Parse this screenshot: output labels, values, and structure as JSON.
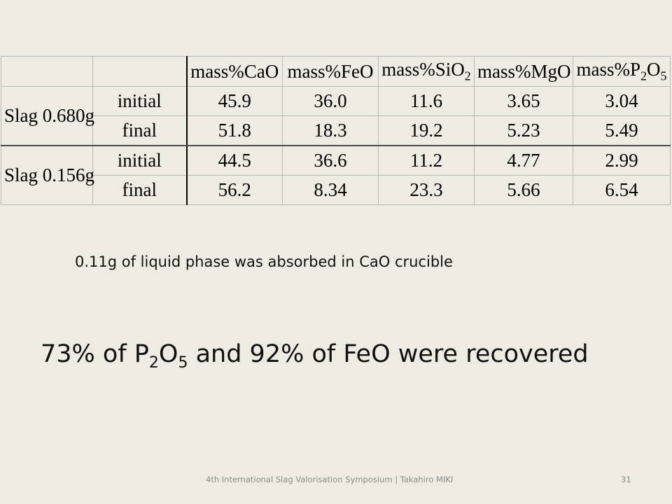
{
  "table": {
    "headers": [
      "",
      "",
      "mass%CaO",
      "mass%FeO",
      "mass%SiO",
      "mass%MgO",
      "mass%P",
      "O"
    ],
    "header_parts": {
      "sio_base": "mass%SiO",
      "sio_sub": "2",
      "p_base": "mass%P",
      "p_sub": "2",
      "p_o": "O",
      "p_o_sub": "5"
    },
    "groups": [
      {
        "label": "Slag 0.680g",
        "rows": [
          {
            "state": "initial",
            "values": [
              "45.9",
              "36.0",
              "11.6",
              "3.65",
              "3.04"
            ]
          },
          {
            "state": "final",
            "values": [
              "51.8",
              "18.3",
              "19.2",
              "5.23",
              "5.49"
            ]
          }
        ]
      },
      {
        "label": "Slag 0.156g",
        "rows": [
          {
            "state": "initial",
            "values": [
              "44.5",
              "36.6",
              "11.2",
              "4.77",
              "2.99"
            ]
          },
          {
            "state": "final",
            "values": [
              "56.2",
              "8.34",
              "23.3",
              "5.66",
              "6.54"
            ]
          }
        ]
      }
    ]
  },
  "note": "0.11g of liquid phase was absorbed in CaO crucible",
  "headline": {
    "part1": "73% of P",
    "sub1": "2",
    "part2": "O",
    "sub2": "5",
    "part3": " and 92% of FeO were recovered"
  },
  "footer": {
    "text": "4th International Slag Valorisation Symposium  |  Takahiro MIKI",
    "page_number": "31"
  },
  "colors": {
    "background": "#eeebe2",
    "grid_line": "#b9b9b9",
    "footer_text": "#8a8a8a"
  }
}
